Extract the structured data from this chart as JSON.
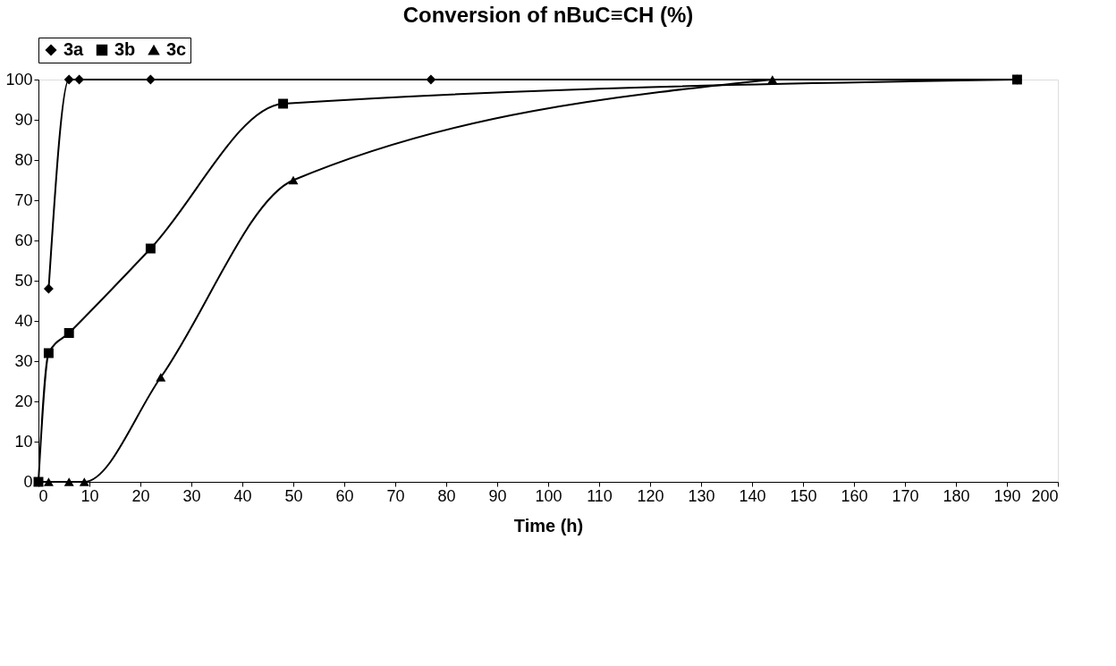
{
  "chart_data": {
    "type": "line",
    "title": "Conversion of nBuC≡CH (%)",
    "xlabel": "Time (h)",
    "xlim": [
      0,
      200
    ],
    "xticks": [
      0,
      10,
      20,
      30,
      40,
      50,
      60,
      70,
      80,
      90,
      100,
      110,
      120,
      130,
      140,
      150,
      160,
      170,
      180,
      190,
      200
    ],
    "ylim": [
      0,
      100
    ],
    "yticks": [
      0,
      10,
      20,
      30,
      40,
      50,
      60,
      70,
      80,
      90,
      100
    ],
    "grid": false,
    "legend": "top",
    "series": [
      {
        "name": "3a",
        "color": "#000000",
        "marker": "diamond",
        "x": [
          2,
          6,
          8,
          22,
          77,
          192
        ],
        "values": [
          48,
          100,
          100,
          100,
          100,
          100
        ]
      },
      {
        "name": "3b",
        "color": "#000000",
        "marker": "square",
        "x": [
          0,
          2,
          6,
          22,
          48,
          192
        ],
        "values": [
          0,
          32,
          37,
          58,
          94,
          100
        ]
      },
      {
        "name": "3c",
        "color": "#000000",
        "marker": "triangle",
        "x": [
          0,
          2,
          6,
          9,
          24,
          50,
          144
        ],
        "values": [
          0,
          0,
          0,
          0,
          26,
          75,
          100
        ]
      }
    ]
  }
}
